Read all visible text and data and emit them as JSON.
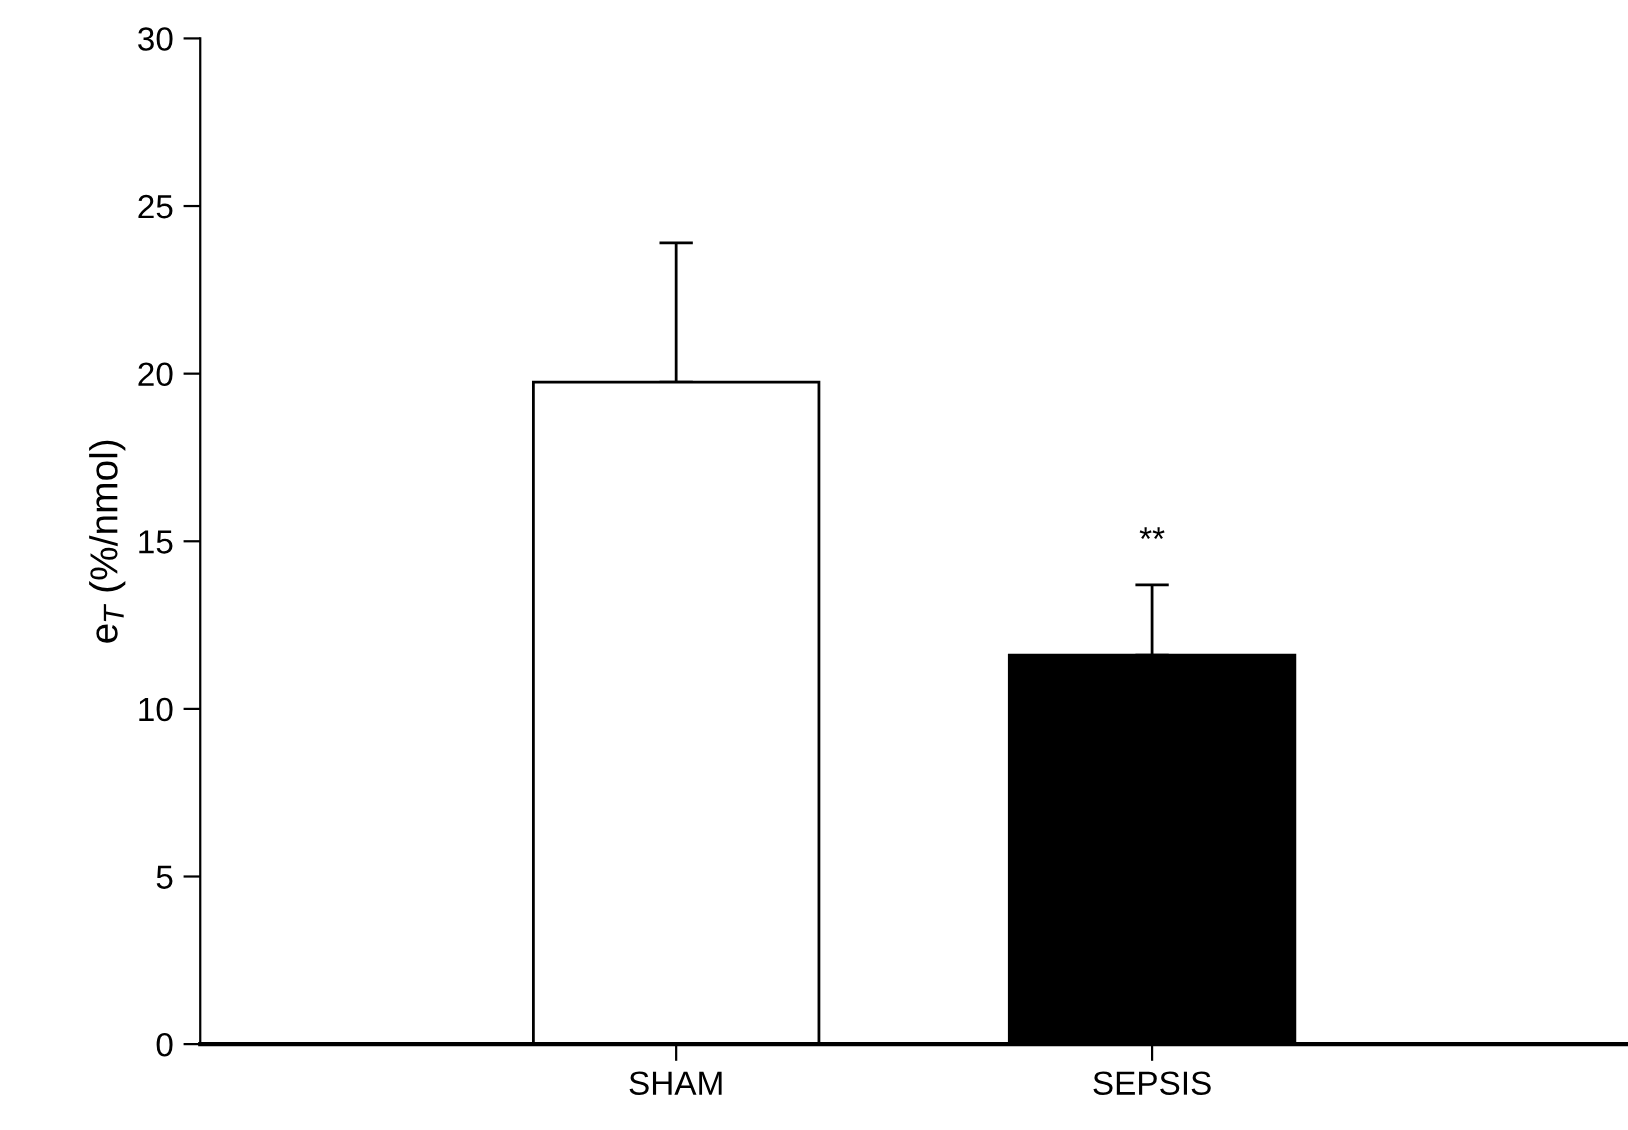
{
  "chart_data": {
    "type": "bar",
    "ylabel": "e$_{T}$ (%/nmol)",
    "categories": [
      "SHAM",
      "SEPSIS"
    ],
    "values": [
      19.75,
      11.6
    ],
    "colors": [
      "#ffffff",
      "#000000"
    ],
    "errors": [
      4.15,
      2.1
    ],
    "ylim": [
      0,
      30
    ],
    "yticks": [
      0,
      5,
      10,
      15,
      20,
      25,
      30
    ],
    "annotations": [
      "**"
    ],
    "grid": false
  }
}
